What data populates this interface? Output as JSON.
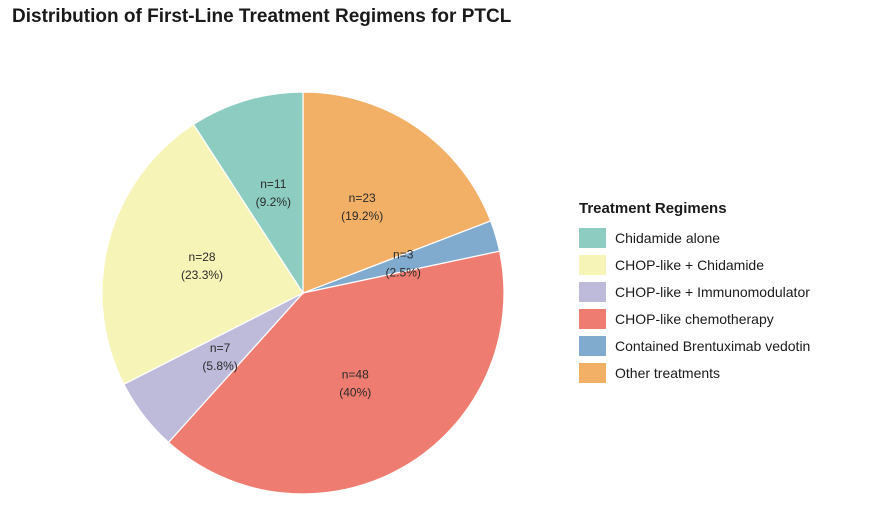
{
  "chart_data": {
    "type": "pie",
    "title": "Distribution of First-Line Treatment Regimens for PTCL",
    "legend_title": "Treatment Regimens",
    "legend_position": "right",
    "slices": [
      {
        "label": "Other treatments",
        "value": 23,
        "percent_label": "(19.2%)",
        "count_label": "n=23",
        "color": "#F2B066"
      },
      {
        "label": "Contained Brentuximab vedotin",
        "value": 3,
        "percent_label": "(2.5%)",
        "count_label": "n=3",
        "color": "#80ABCE"
      },
      {
        "label": "CHOP-like chemotherapy",
        "value": 48,
        "percent_label": "(40%)",
        "count_label": "n=48",
        "color": "#EF7C70"
      },
      {
        "label": "CHOP-like + Immunomodulator",
        "value": 7,
        "percent_label": "(5.8%)",
        "count_label": "n=7",
        "color": "#BEBADA"
      },
      {
        "label": "CHOP-like + Chidamide",
        "value": 28,
        "percent_label": "(23.3%)",
        "count_label": "n=28",
        "color": "#F7F4B8"
      },
      {
        "label": "Chidamide alone",
        "value": 11,
        "percent_label": "(9.2%)",
        "count_label": "n=11",
        "color": "#8DCDC1"
      }
    ],
    "legend_order": [
      "Chidamide alone",
      "CHOP-like + Chidamide",
      "CHOP-like + Immunomodulator",
      "CHOP-like chemotherapy",
      "Contained Brentuximab vedotin",
      "Other treatments"
    ]
  }
}
